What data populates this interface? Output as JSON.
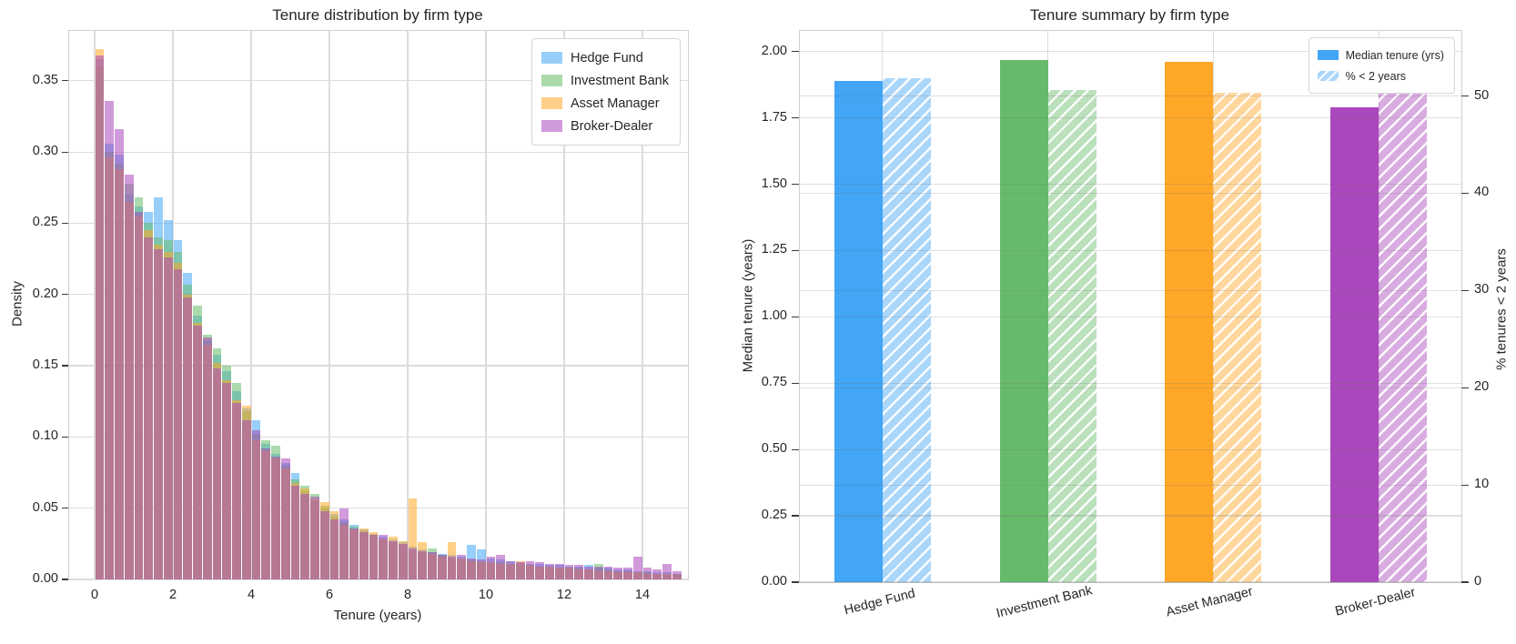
{
  "figure": {
    "background": "#ffffff"
  },
  "colors": {
    "hedge_fund": "#42A5F5",
    "investment_bank": "#66BB6A",
    "asset_manager": "#FFA726",
    "broker_dealer": "#AB47BC",
    "grid": "#dcdcdc",
    "spine": "#cfcfcf",
    "text": "#262626",
    "hist_alpha": 0.55,
    "hatch_alpha": 0.45
  },
  "chart_data": [
    {
      "type": "bar",
      "subtype": "overlaid-density-histogram",
      "title": "Tenure distribution by firm type",
      "xlabel": "Tenure (years)",
      "ylabel": "Density",
      "xlim": [
        -0.65,
        15.15
      ],
      "ylim": [
        0,
        0.385
      ],
      "grid": true,
      "legend_position": "upper right",
      "bin_start": 0,
      "bin_width": 0.25,
      "xtick_labels": [
        "0",
        "2",
        "4",
        "6",
        "8",
        "10",
        "12",
        "14"
      ],
      "ytick_labels": [
        "0.00",
        "0.05",
        "0.10",
        "0.15",
        "0.20",
        "0.25",
        "0.30",
        "0.35"
      ],
      "series": [
        {
          "name": "Hedge Fund",
          "color": "#42A5F5",
          "values": [
            0.365,
            0.306,
            0.298,
            0.27,
            0.262,
            0.258,
            0.268,
            0.252,
            0.238,
            0.215,
            0.185,
            0.168,
            0.158,
            0.146,
            0.132,
            0.12,
            0.112,
            0.095,
            0.088,
            0.082,
            0.075,
            0.062,
            0.055,
            0.05,
            0.046,
            0.042,
            0.038,
            0.035,
            0.032,
            0.03,
            0.028,
            0.026,
            0.023,
            0.021,
            0.019,
            0.018,
            0.017,
            0.016,
            0.024,
            0.021,
            0.015,
            0.014,
            0.013,
            0.012,
            0.011,
            0.011,
            0.01,
            0.01,
            0.009,
            0.009,
            0.01,
            0.008,
            0.008,
            0.007,
            0.007,
            0.006,
            0.006,
            0.005,
            0.005,
            0.004
          ]
        },
        {
          "name": "Investment Bank",
          "color": "#66BB6A",
          "values": [
            0.36,
            0.3,
            0.292,
            0.278,
            0.268,
            0.25,
            0.24,
            0.238,
            0.23,
            0.207,
            0.192,
            0.172,
            0.162,
            0.15,
            0.138,
            0.118,
            0.102,
            0.098,
            0.094,
            0.08,
            0.07,
            0.066,
            0.06,
            0.052,
            0.044,
            0.04,
            0.037,
            0.034,
            0.031,
            0.028,
            0.026,
            0.024,
            0.02,
            0.019,
            0.022,
            0.017,
            0.015,
            0.014,
            0.014,
            0.013,
            0.012,
            0.012,
            0.011,
            0.011,
            0.01,
            0.009,
            0.009,
            0.008,
            0.008,
            0.008,
            0.007,
            0.011,
            0.007,
            0.006,
            0.006,
            0.005,
            0.005,
            0.004,
            0.004,
            0.004
          ]
        },
        {
          "name": "Asset Manager",
          "color": "#FFA726",
          "values": [
            0.372,
            0.296,
            0.288,
            0.265,
            0.255,
            0.245,
            0.235,
            0.23,
            0.222,
            0.2,
            0.18,
            0.165,
            0.152,
            0.14,
            0.126,
            0.122,
            0.098,
            0.09,
            0.085,
            0.078,
            0.068,
            0.064,
            0.056,
            0.054,
            0.048,
            0.038,
            0.035,
            0.036,
            0.033,
            0.029,
            0.03,
            0.027,
            0.057,
            0.026,
            0.018,
            0.016,
            0.026,
            0.015,
            0.013,
            0.012,
            0.012,
            0.011,
            0.011,
            0.013,
            0.01,
            0.009,
            0.009,
            0.008,
            0.008,
            0.007,
            0.007,
            0.006,
            0.006,
            0.005,
            0.005,
            0.005,
            0.004,
            0.004,
            0.004,
            0.003
          ]
        },
        {
          "name": "Broker-Dealer",
          "color": "#AB47BC",
          "values": [
            0.368,
            0.336,
            0.316,
            0.284,
            0.258,
            0.24,
            0.232,
            0.226,
            0.218,
            0.198,
            0.178,
            0.17,
            0.148,
            0.138,
            0.124,
            0.112,
            0.105,
            0.092,
            0.086,
            0.085,
            0.066,
            0.06,
            0.058,
            0.048,
            0.042,
            0.05,
            0.036,
            0.033,
            0.031,
            0.031,
            0.027,
            0.025,
            0.022,
            0.02,
            0.019,
            0.017,
            0.016,
            0.017,
            0.015,
            0.014,
            0.016,
            0.017,
            0.013,
            0.012,
            0.013,
            0.012,
            0.011,
            0.011,
            0.01,
            0.01,
            0.009,
            0.009,
            0.009,
            0.008,
            0.008,
            0.016,
            0.008,
            0.007,
            0.011,
            0.006
          ]
        }
      ]
    },
    {
      "type": "bar",
      "subtype": "grouped-twin-axis",
      "title": "Tenure summary by firm type",
      "categories": [
        "Hedge Fund",
        "Investment Bank",
        "Asset Manager",
        "Broker-Dealer"
      ],
      "category_colors": [
        "#42A5F5",
        "#66BB6A",
        "#FFA726",
        "#AB47BC"
      ],
      "ylabel_left": "Median tenure (years)",
      "ylabel_right": "% tenures < 2 years",
      "ylim_left": [
        0,
        2.078
      ],
      "ylim_right": [
        0,
        56.7
      ],
      "grid": true,
      "legend_position": "upper right",
      "ytick_labels_left": [
        "0.00",
        "0.25",
        "0.50",
        "0.75",
        "1.00",
        "1.25",
        "1.50",
        "1.75",
        "2.00"
      ],
      "ytick_labels_right": [
        "0",
        "10",
        "20",
        "30",
        "40",
        "50"
      ],
      "series": [
        {
          "name": "Median tenure (yrs)",
          "axis": "left",
          "style": "solid",
          "values": [
            1.89,
            1.97,
            1.96,
            1.79
          ]
        },
        {
          "name": "% < 2 years",
          "axis": "right",
          "style": "hatched",
          "values": [
            51.8,
            50.6,
            50.3,
            53.6
          ]
        }
      ]
    }
  ]
}
